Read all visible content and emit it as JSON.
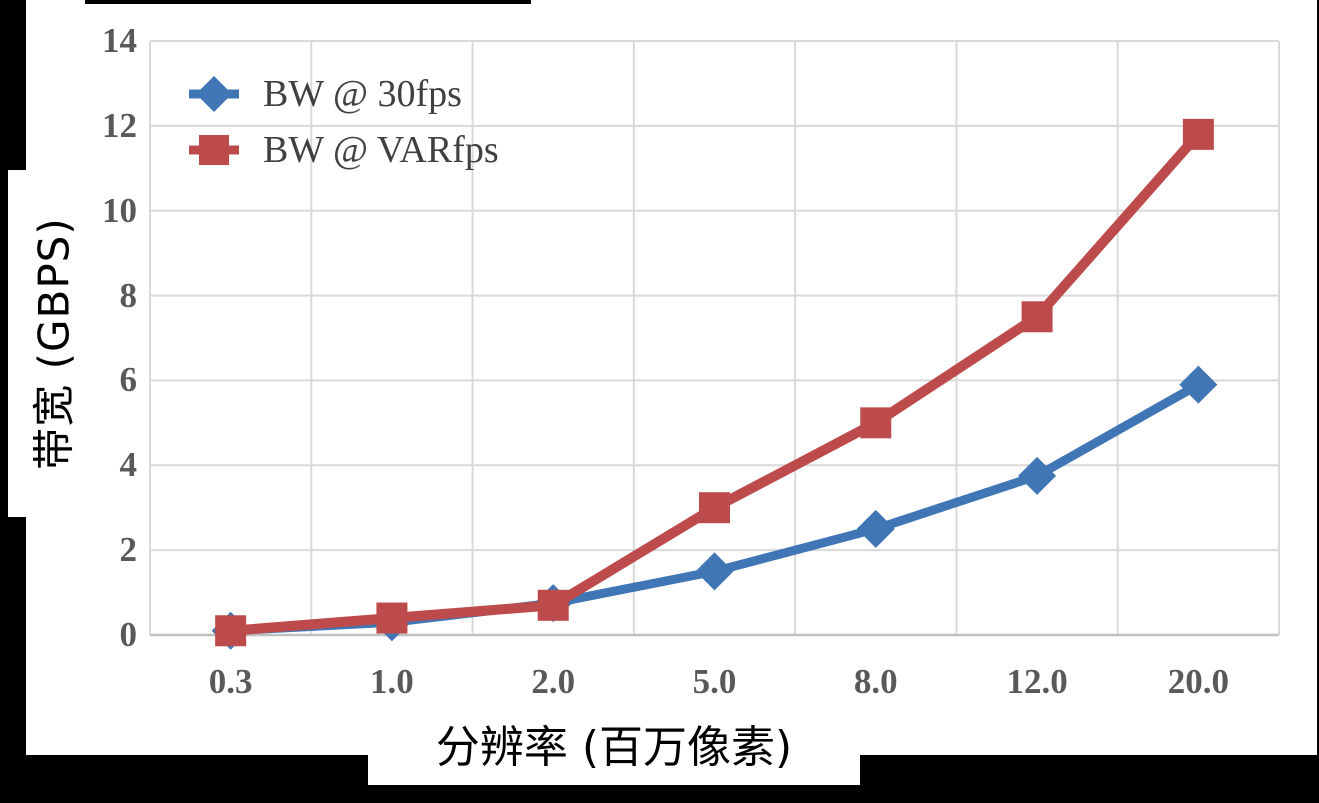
{
  "colors": {
    "background": "#000000",
    "chart_background": "#ffffff",
    "gridline": "#d9d9d9",
    "axis_line": "#c0c0c0",
    "tick_label": "#595959",
    "legend_text": "#404040",
    "axis_title_text": "#000000",
    "series_blue": "#4076b5",
    "series_red": "#be4b4b"
  },
  "chart_data": {
    "type": "line",
    "title": "",
    "xlabel": "分辨率 (百万像素)",
    "ylabel": "带宽 (GBPS)",
    "categories": [
      0.3,
      1.0,
      2.0,
      5.0,
      8.0,
      12.0,
      20.0
    ],
    "x_tick_labels": [
      "0.3",
      "1.0",
      "2.0",
      "5.0",
      "8.0",
      "12.0",
      "20.0"
    ],
    "series": [
      {
        "name": "BW @ 30fps",
        "marker": "diamond",
        "color": "#4076b5",
        "values": [
          0.1,
          0.3,
          0.75,
          1.5,
          2.5,
          3.75,
          5.9
        ]
      },
      {
        "name": "BW @ VARfps",
        "marker": "square",
        "color": "#be4b4b",
        "values": [
          0.1,
          0.4,
          0.7,
          3.0,
          5.0,
          7.5,
          11.8
        ]
      }
    ],
    "ylim": [
      0,
      14
    ],
    "yticks": [
      0,
      2,
      4,
      6,
      8,
      10,
      12,
      14
    ],
    "y_tick_labels": [
      "0",
      "2",
      "4",
      "6",
      "8",
      "10",
      "12",
      "14"
    ],
    "grid": true,
    "legend_position": "top-left-inside"
  }
}
